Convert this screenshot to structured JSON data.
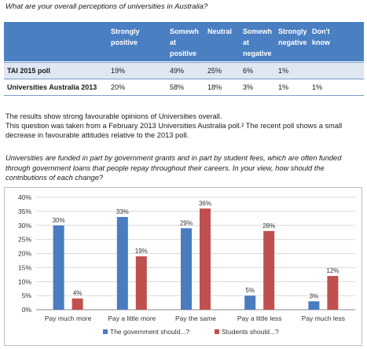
{
  "question1": "What are your overall perceptions of universities in Australia?",
  "table": {
    "headers": [
      "Strongly positive",
      "Somewh at positive",
      "Neutral",
      "Somewh at negative",
      "Strongly negative",
      "Don't know"
    ],
    "header_lines": [
      [
        "Strongly",
        "positive"
      ],
      [
        "Somewh",
        "at",
        "positive"
      ],
      [
        "Neutral"
      ],
      [
        "Somewh",
        "at",
        "negative"
      ],
      [
        "Strongly",
        "negative"
      ],
      [
        "Don't",
        "know"
      ]
    ],
    "rows": [
      {
        "label": "TAI 2015  poll",
        "values": [
          "19%",
          "49%",
          "25%",
          "6%",
          "1%",
          ""
        ]
      },
      {
        "label": "Universities Australia 2013",
        "values": [
          "20%",
          "58%",
          "18%",
          "3%",
          "1%",
          "1%"
        ]
      }
    ]
  },
  "results_line1": "The results show strong favourable opinions of Universities overall.",
  "results_line2": "This question was taken from a February 2013 Universities Australia poll.² The recent poll shows a small",
  "results_line3": "decrease in favourable attitudes relative to the 2013 poll.",
  "question2_line1": "Universities are funded in part by government grants and in part by student fees, which are often funded",
  "question2_line2": "through government loans that people repay throughout their careers. In your view, how should the",
  "question2_line3": "contributions of each change?",
  "chart_data": {
    "type": "bar",
    "categories": [
      "Pay much more",
      "Pay a little more",
      "Pay the same",
      "Pay a little less",
      "Pay much less"
    ],
    "series": [
      {
        "name": "The government should...?",
        "values": [
          30,
          33,
          29,
          5,
          3
        ],
        "color": "#4a7cc0"
      },
      {
        "name": "Students should...?",
        "values": [
          4,
          19,
          36,
          28,
          12
        ],
        "color": "#c0504d"
      }
    ],
    "yticks": [
      "0%",
      "5%",
      "10%",
      "15%",
      "20%",
      "25%",
      "30%",
      "35%",
      "40%"
    ],
    "ylim": [
      0,
      40
    ],
    "grid": true,
    "legend": "bottom"
  }
}
